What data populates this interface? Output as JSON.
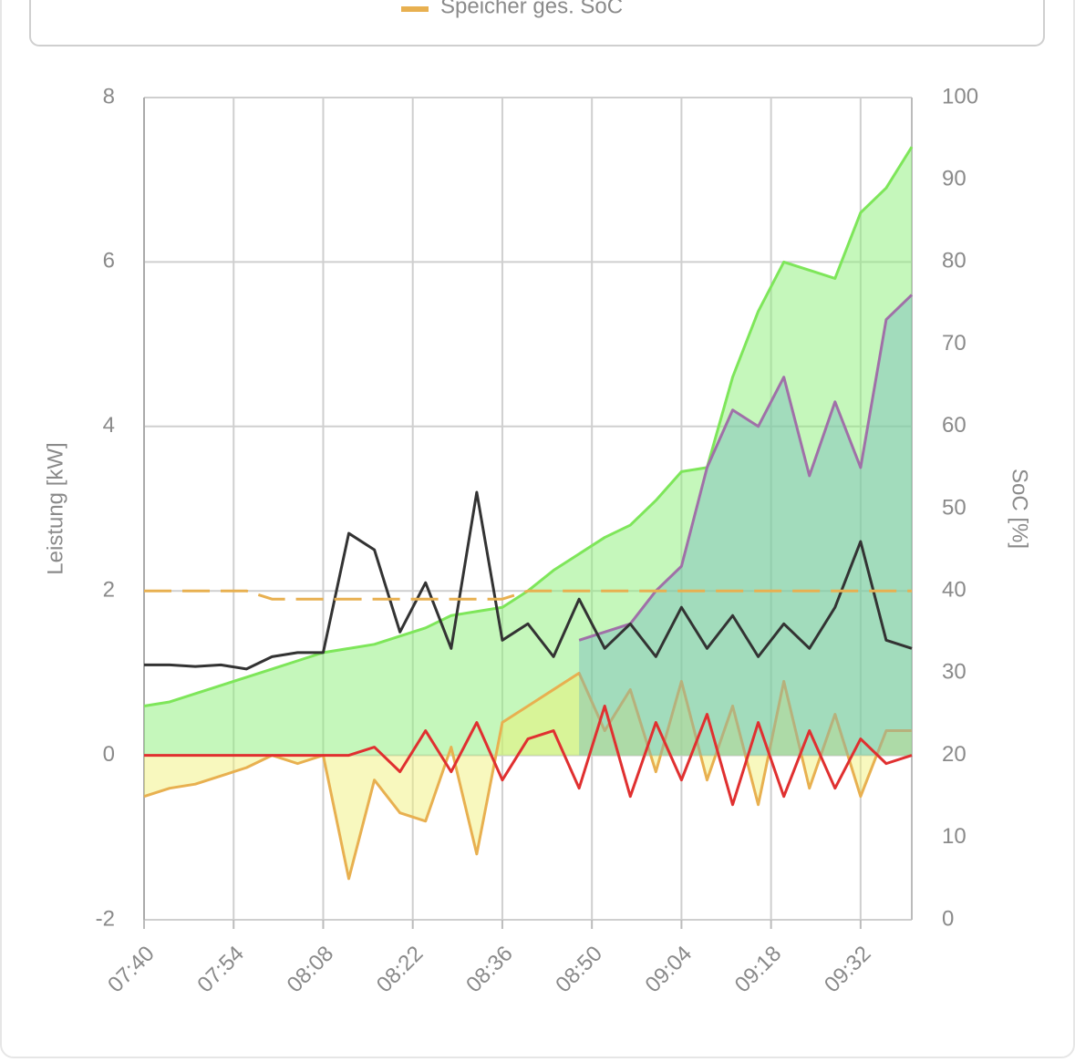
{
  "chart_data": {
    "type": "line",
    "x": [
      "07:40",
      "07:44",
      "07:48",
      "07:52",
      "07:56",
      "08:00",
      "08:04",
      "08:08",
      "08:12",
      "08:16",
      "08:20",
      "08:24",
      "08:28",
      "08:32",
      "08:36",
      "08:40",
      "08:44",
      "08:48",
      "08:52",
      "08:56",
      "09:00",
      "09:04",
      "09:08",
      "09:12",
      "09:16",
      "09:20",
      "09:24",
      "09:28",
      "09:32",
      "09:36",
      "09:40"
    ],
    "xlim": [
      "07:40",
      "09:40"
    ],
    "xticks": [
      "07:40",
      "07:54",
      "08:08",
      "08:22",
      "08:36",
      "08:50",
      "09:04",
      "09:18",
      "09:32"
    ],
    "ylim": [
      -2,
      8
    ],
    "yticks": [
      -2,
      0,
      2,
      4,
      6,
      8
    ],
    "y2lim": [
      0,
      100
    ],
    "y2ticks": [
      0,
      10,
      20,
      30,
      40,
      50,
      60,
      70,
      80,
      90,
      100
    ],
    "ylabel": "Leistung [kW]",
    "y2label": "SoC [%]",
    "grid": true,
    "series": [
      {
        "color": "#7ee65a",
        "fill": "rgba(140,240,120,0.5)",
        "area": true,
        "values": [
          0.6,
          0.65,
          0.75,
          0.85,
          0.95,
          1.05,
          1.15,
          1.25,
          1.3,
          1.35,
          1.45,
          1.55,
          1.7,
          1.75,
          1.8,
          2.0,
          2.25,
          2.45,
          2.65,
          2.8,
          3.1,
          3.45,
          3.5,
          4.6,
          5.4,
          6.0,
          5.9,
          5.8,
          6.6,
          6.9,
          7.4
        ]
      },
      {
        "color": "#e8b050",
        "fill": "rgba(240,240,110,0.45)",
        "area": true,
        "values": [
          -0.5,
          -0.4,
          -0.35,
          -0.25,
          -0.15,
          0,
          -0.1,
          0,
          -1.5,
          -0.3,
          -0.7,
          -0.8,
          0.1,
          -1.2,
          0.4,
          0.6,
          0.8,
          1.0,
          0.3,
          0.8,
          -0.2,
          0.9,
          -0.3,
          0.6,
          -0.6,
          0.9,
          -0.4,
          0.5,
          -0.5,
          0.3,
          0.3
        ]
      },
      {
        "color": "#a070a8",
        "fill": "rgba(110,180,190,0.4)",
        "area": true,
        "values": [
          null,
          null,
          null,
          null,
          null,
          null,
          null,
          null,
          null,
          null,
          null,
          null,
          null,
          null,
          null,
          null,
          null,
          1.4,
          1.5,
          1.6,
          2.0,
          2.3,
          3.5,
          4.2,
          4.0,
          4.6,
          3.4,
          4.3,
          3.5,
          5.3,
          5.6
        ]
      },
      {
        "color": "#333333",
        "values": [
          1.1,
          1.1,
          1.08,
          1.1,
          1.05,
          1.2,
          1.25,
          1.25,
          2.7,
          2.5,
          1.5,
          2.1,
          1.3,
          3.2,
          1.4,
          1.6,
          1.2,
          1.9,
          1.3,
          1.6,
          1.2,
          1.8,
          1.3,
          1.7,
          1.2,
          1.6,
          1.3,
          1.8,
          2.6,
          1.4,
          1.3
        ]
      },
      {
        "color": "#e03030",
        "values": [
          0,
          0,
          0,
          0,
          0,
          0,
          0,
          0,
          0,
          0.1,
          -0.2,
          0.3,
          -0.2,
          0.4,
          -0.3,
          0.2,
          0.3,
          -0.4,
          0.6,
          -0.5,
          0.4,
          -0.3,
          0.5,
          -0.6,
          0.4,
          -0.5,
          0.3,
          -0.4,
          0.2,
          -0.1,
          0
        ]
      },
      {
        "name": "Speicher ges. SoC",
        "color": "#e8b050",
        "axis": "y2",
        "dashed": true,
        "values": [
          40,
          40,
          40,
          40,
          40,
          39,
          39,
          39,
          39,
          39,
          39,
          39,
          39,
          39,
          39,
          40,
          40,
          40,
          40,
          40,
          40,
          40,
          40,
          40,
          40,
          40,
          40,
          40,
          40,
          40,
          40
        ]
      }
    ]
  }
}
